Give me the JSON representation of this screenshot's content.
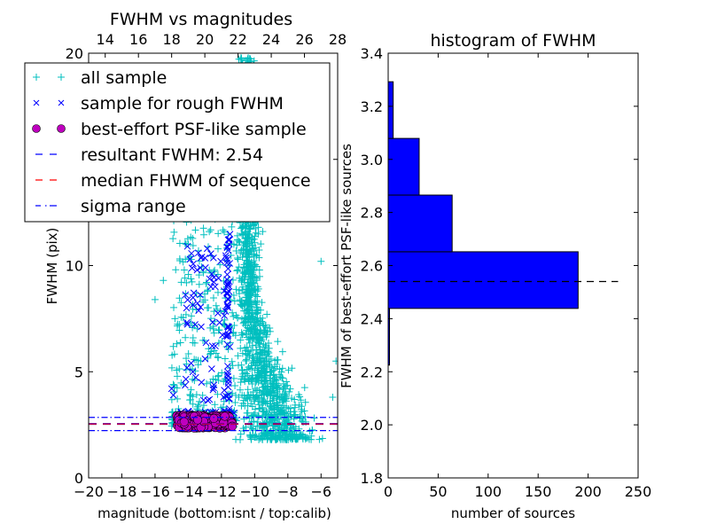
{
  "chart_data": [
    {
      "type": "scatter",
      "title": "FWHM vs magnitudes",
      "xlabel": "magnitude (bottom:isnt / top:calib)",
      "ylabel": "FWHM (pix)",
      "xlim": [
        -20,
        -5
      ],
      "ylim": [
        0,
        20
      ],
      "top_xlim": [
        13,
        28
      ],
      "x_ticks": [
        -20,
        -18,
        -16,
        -14,
        -12,
        -10,
        -8,
        -6
      ],
      "x_tick_labels": [
        "−20",
        "−18",
        "−16",
        "−14",
        "−12",
        "−10",
        "−8",
        "−6"
      ],
      "y_ticks": [
        0,
        5,
        10,
        15,
        20
      ],
      "y_tick_labels": [
        "0",
        "5",
        "10",
        "15",
        "20"
      ],
      "top_x_ticks": [
        14,
        16,
        18,
        20,
        22,
        24,
        26,
        28
      ],
      "top_x_tick_labels": [
        "14",
        "16",
        "18",
        "20",
        "22",
        "24",
        "26",
        "28"
      ],
      "grid": false,
      "legend_position": "top-left",
      "colors": {
        "all_sample": "#00bfbf",
        "rough": "#0000ff",
        "best": "#bf00bf",
        "resultant": "#0000ff",
        "median": "#ff0000",
        "sigma": "#0000ff"
      },
      "series": [
        {
          "name": "all sample",
          "marker": "plus",
          "clusters": [
            {
              "x_range": [
                -15.2,
                -11.0
              ],
              "y_range": [
                2.3,
                13.5
              ],
              "count": 420
            },
            {
              "x_range": [
                -11.2,
                -5.0
              ],
              "y_range": [
                1.6,
                20.0
              ],
              "count": 1500
            }
          ]
        },
        {
          "name": "sample for rough FWHM",
          "marker": "x",
          "clusters": [
            {
              "x_range": [
                -15.0,
                -11.2
              ],
              "y_range": [
                2.6,
                11.5
              ],
              "count": 150
            }
          ]
        },
        {
          "name": "best-effort PSF-like sample",
          "marker": "circle",
          "clusters": [
            {
              "x_range": [
                -14.7,
                -11.3
              ],
              "y_range": [
                2.3,
                3.0
              ],
              "count": 290
            }
          ]
        }
      ],
      "lines": [
        {
          "name": "resultant FWHM: 2.54",
          "y": 2.54,
          "style": "dashed"
        },
        {
          "name": "median FHWM of sequence",
          "y": 2.54,
          "style": "dashed"
        },
        {
          "name": "sigma range",
          "y": [
            2.23,
            2.85
          ],
          "style": "dashdot"
        }
      ],
      "legend": [
        "all sample",
        "sample for rough FWHM",
        "best-effort PSF-like sample",
        "resultant FWHM: 2.54",
        "median FHWM of sequence",
        "sigma range"
      ]
    },
    {
      "type": "bar",
      "orientation": "horizontal",
      "title": "histogram of FWHM",
      "xlabel": "number of sources",
      "ylabel": "FWHM of best-effort PSF-like sources",
      "xlim": [
        0,
        250
      ],
      "ylim": [
        1.8,
        3.4
      ],
      "x_ticks": [
        0,
        50,
        100,
        150,
        200,
        250
      ],
      "x_tick_labels": [
        "0",
        "50",
        "100",
        "150",
        "200",
        "250"
      ],
      "y_ticks": [
        1.8,
        2.0,
        2.2,
        2.4,
        2.6,
        2.8,
        3.0,
        3.2,
        3.4
      ],
      "y_tick_labels": [
        "1.8",
        "2.0",
        "2.2",
        "2.4",
        "2.6",
        "2.8",
        "3.0",
        "3.2",
        "3.4"
      ],
      "bin_edges": [
        2.225,
        2.4385,
        2.652,
        2.8655,
        3.079,
        3.2925
      ],
      "values": [
        1,
        190,
        64,
        31,
        5
      ],
      "bar_color": "#0000ff",
      "reference_line": {
        "y": 2.54,
        "x_extent": 230,
        "style": "dashed",
        "color": "#000000"
      },
      "grid": false
    }
  ]
}
